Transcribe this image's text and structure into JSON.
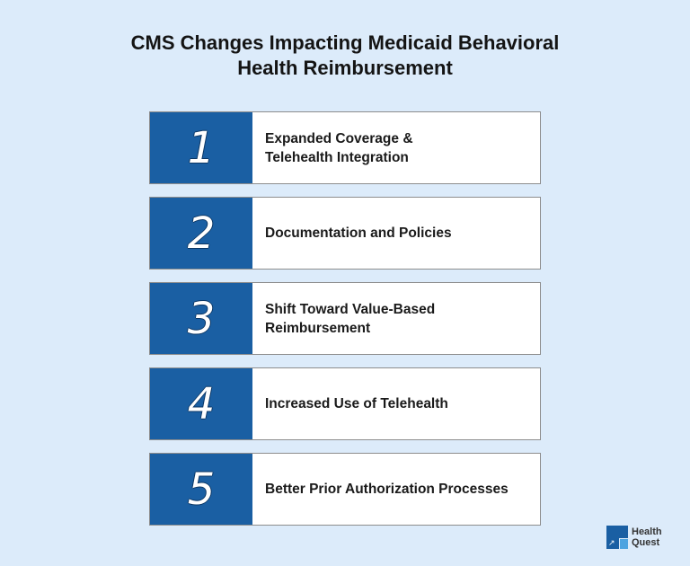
{
  "title": "CMS Changes Impacting Medicaid Behavioral\nHealth Reimbursement",
  "items": [
    {
      "number": "1",
      "label": "Expanded Coverage &\nTelehealth Integration"
    },
    {
      "number": "2",
      "label": "Documentation and Policies"
    },
    {
      "number": "3",
      "label": "Shift Toward Value-Based\nReimbursement"
    },
    {
      "number": "4",
      "label": "Increased Use of Telehealth"
    },
    {
      "number": "5",
      "label": "Better Prior Authorization Processes"
    }
  ],
  "logo": {
    "line1": "Health",
    "line2": "Quest"
  },
  "colors": {
    "background": "#dcebfa",
    "accent": "#1a5fa3",
    "logo_light": "#4da3e0"
  }
}
